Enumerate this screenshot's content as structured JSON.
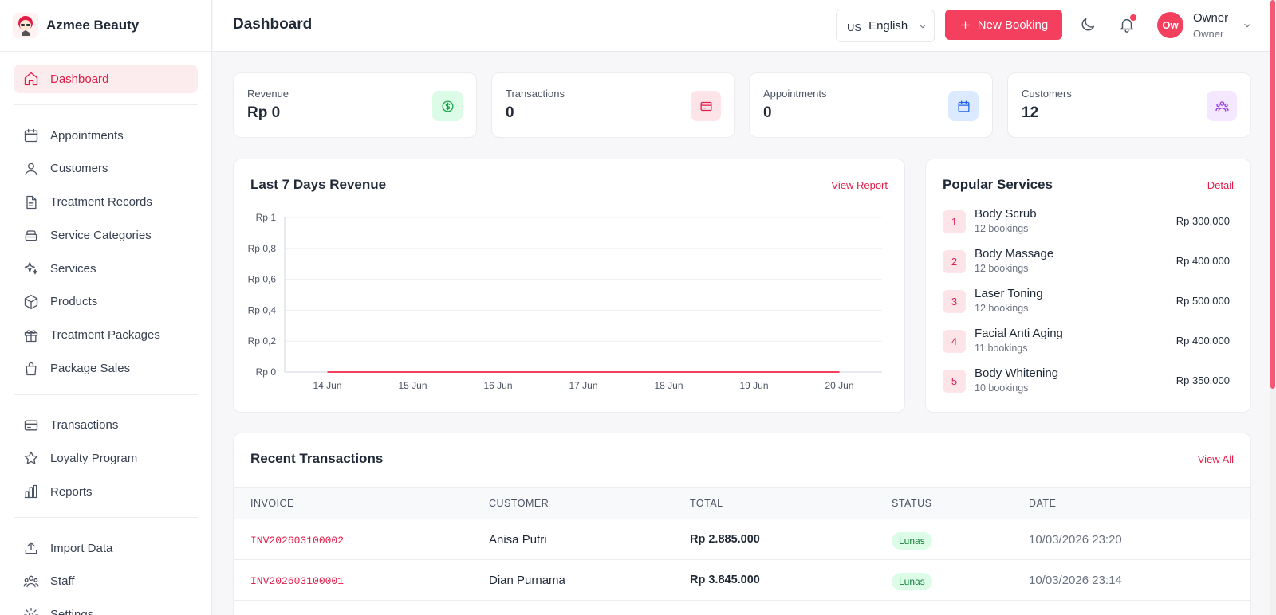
{
  "brand": {
    "name": "Azmee Beauty"
  },
  "sidebar": {
    "items": [
      {
        "label": "Dashboard",
        "icon": "home-icon",
        "active": true
      },
      {
        "label": "Appointments",
        "icon": "calendar-icon"
      },
      {
        "label": "Customers",
        "icon": "users-icon"
      },
      {
        "label": "Treatment Records",
        "icon": "file-icon"
      },
      {
        "label": "Service Categories",
        "icon": "layers-icon"
      },
      {
        "label": "Services",
        "icon": "sparkles-icon"
      },
      {
        "label": "Products",
        "icon": "box-icon"
      },
      {
        "label": "Treatment Packages",
        "icon": "gift-icon"
      },
      {
        "label": "Package Sales",
        "icon": "shopping-bag-icon"
      },
      {
        "label": "Transactions",
        "icon": "credit-card-icon"
      },
      {
        "label": "Loyalty Program",
        "icon": "star-icon"
      },
      {
        "label": "Reports",
        "icon": "bar-chart-icon"
      },
      {
        "label": "Import Data",
        "icon": "upload-icon"
      },
      {
        "label": "Staff",
        "icon": "team-icon"
      },
      {
        "label": "Settings",
        "icon": "gear-icon"
      }
    ]
  },
  "header": {
    "title": "Dashboard",
    "language": {
      "flag": "US",
      "label": "English"
    },
    "new_booking_label": "New Booking",
    "user": {
      "initials": "Ow",
      "name": "Owner",
      "role": "Owner"
    }
  },
  "stats": [
    {
      "label": "Revenue",
      "value": "Rp 0",
      "icon": "dollar-icon",
      "bg": "#dcfce7",
      "color": "#16a34a"
    },
    {
      "label": "Transactions",
      "value": "0",
      "icon": "credit-card-icon",
      "bg": "#fde4e8",
      "color": "#e11d48"
    },
    {
      "label": "Appointments",
      "value": "0",
      "icon": "calendar-icon",
      "bg": "#dbeafe",
      "color": "#2563eb"
    },
    {
      "label": "Customers",
      "value": "12",
      "icon": "users-icon",
      "bg": "#f3e8ff",
      "color": "#9333ea"
    }
  ],
  "revenue_panel": {
    "title": "Last 7 Days Revenue",
    "link": "View Report"
  },
  "chart_data": {
    "type": "line",
    "title": "Last 7 Days Revenue",
    "x": [
      "14 Jun",
      "15 Jun",
      "16 Jun",
      "17 Jun",
      "18 Jun",
      "19 Jun",
      "20 Jun"
    ],
    "values": [
      0,
      0,
      0,
      0,
      0,
      0,
      0
    ],
    "yticks": [
      "Rp 0",
      "Rp 0,2",
      "Rp 0,4",
      "Rp 0,6",
      "Rp 0,8",
      "Rp 1"
    ],
    "ylim": [
      0,
      1
    ],
    "grid": true
  },
  "popular_services": {
    "title": "Popular Services",
    "link": "Detail",
    "items": [
      {
        "rank": "1",
        "name": "Body Scrub",
        "count": "12 bookings",
        "price": "Rp 300.000"
      },
      {
        "rank": "2",
        "name": "Body Massage",
        "count": "12 bookings",
        "price": "Rp 400.000"
      },
      {
        "rank": "3",
        "name": "Laser Toning",
        "count": "12 bookings",
        "price": "Rp 500.000"
      },
      {
        "rank": "4",
        "name": "Facial Anti Aging",
        "count": "11 bookings",
        "price": "Rp 400.000"
      },
      {
        "rank": "5",
        "name": "Body Whitening",
        "count": "10 bookings",
        "price": "Rp 350.000"
      }
    ]
  },
  "recent_transactions": {
    "title": "Recent Transactions",
    "link": "View All",
    "columns": [
      "INVOICE",
      "CUSTOMER",
      "TOTAL",
      "STATUS",
      "DATE"
    ],
    "rows": [
      {
        "invoice": "INV202603100002",
        "customer": "Anisa Putri",
        "total": "Rp 2.885.000",
        "status": "Lunas",
        "date": "10/03/2026 23:20"
      },
      {
        "invoice": "INV202603100001",
        "customer": "Dian Purnama",
        "total": "Rp 3.845.000",
        "status": "Lunas",
        "date": "10/03/2026 23:14"
      }
    ]
  },
  "colors": {
    "accent": "#f43f5e",
    "accent_text": "#e11d48"
  }
}
